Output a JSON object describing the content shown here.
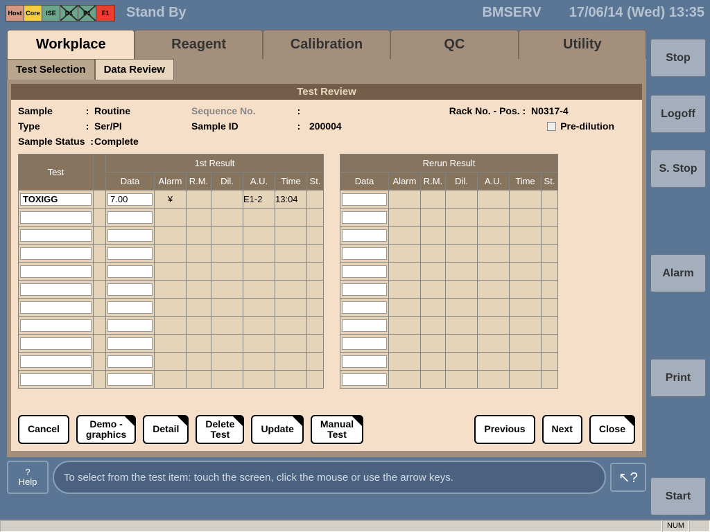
{
  "colors": {
    "host": "#d69784",
    "core": "#f3ce3f",
    "ise": "#6aa58c",
    "d1": "#6aa58c",
    "p1": "#6aa58c",
    "e1": "#e7402e"
  },
  "status_boxes": [
    {
      "id": "Host",
      "label": "Host",
      "color_key": "host"
    },
    {
      "id": "Core",
      "label": "Core",
      "color_key": "core"
    },
    {
      "id": "ISE",
      "label": "ISE",
      "color_key": "ise"
    },
    {
      "id": "D1",
      "label": "D1",
      "color_key": "d1",
      "cross": true
    },
    {
      "id": "P1",
      "label": "P1",
      "color_key": "p1",
      "cross": true
    },
    {
      "id": "E1",
      "label": "E1",
      "color_key": "e1"
    }
  ],
  "top": {
    "status": "Stand By",
    "user": "BMSERV",
    "datetime": "17/06/14 (Wed) 13:35"
  },
  "nav": [
    "Workplace",
    "Reagent",
    "Calibration",
    "QC",
    "Utility"
  ],
  "nav_active": 0,
  "subtabs": [
    "Test Selection",
    "Data Review"
  ],
  "subtab_active": 1,
  "panel_title": "Test Review",
  "side": {
    "stop": "Stop",
    "logoff": "Logoff",
    "sstop": "S. Stop",
    "alarm": "Alarm",
    "print": "Print",
    "start": "Start"
  },
  "info": {
    "sample_label": "Sample",
    "sample_val": "Routine",
    "seq_label": "Sequence No.",
    "seq_val": "",
    "rack_label": "Rack No. - Pos.",
    "rack_val": "N0317-4",
    "type_label": "Type",
    "type_val": "Ser/Pl",
    "sid_label": "Sample ID",
    "sid_val": "200004",
    "predil_label": "Pre-dilution",
    "status_label": "Sample Status",
    "status_val": "Complete"
  },
  "table": {
    "head": {
      "test": "Test",
      "first": "1st Result",
      "re": "Rerun Result",
      "data": "Data",
      "alarm": "Alarm",
      "rm": "R.M.",
      "dil": "Dil.",
      "au": "A.U.",
      "time": "Time",
      "st": "St."
    },
    "rows": [
      {
        "test": "TOXIGG",
        "data": "7.00",
        "alarm": "¥",
        "rm": "",
        "dil": "",
        "au": "E1-2",
        "time": "13:04",
        "st": ""
      }
    ]
  },
  "buttons": {
    "cancel": "Cancel",
    "demo": "Demo -\ngraphics",
    "detail": "Detail",
    "delete": "Delete\nTest",
    "update": "Update",
    "manual": "Manual\nTest",
    "prev": "Previous",
    "next": "Next",
    "close": "Close"
  },
  "help": {
    "btn_top": "?",
    "btn_bot": "Help",
    "msg": "To select from the test item: touch the screen, click the mouse or use the arrow keys."
  },
  "statusbar": {
    "num": "NUM"
  }
}
